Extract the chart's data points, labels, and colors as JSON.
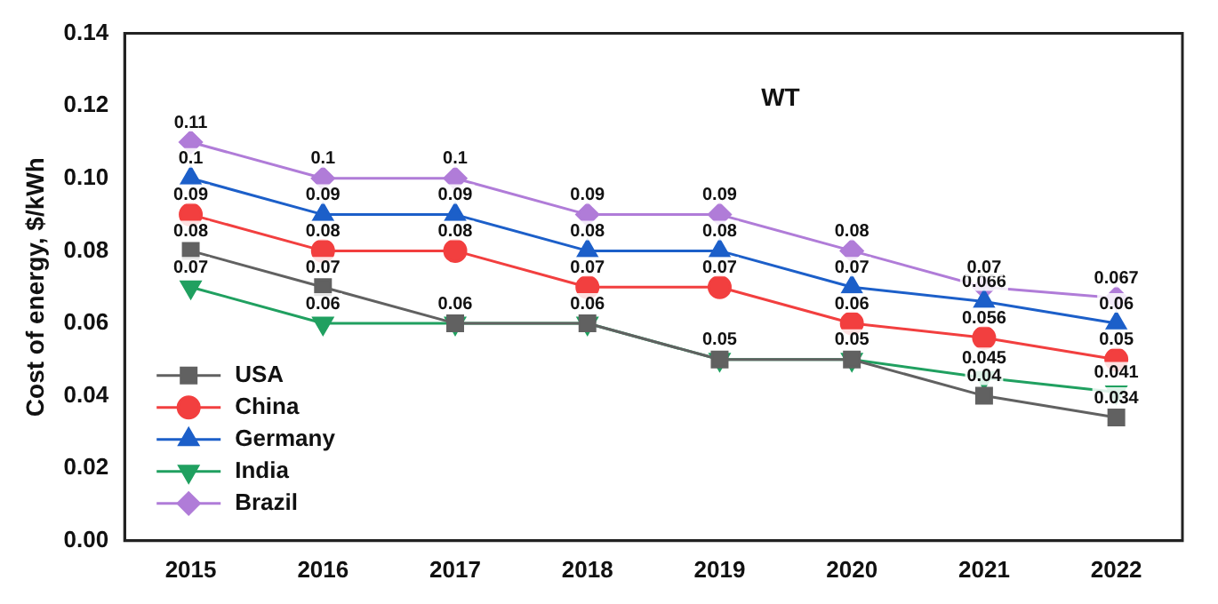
{
  "chart_data": {
    "type": "line",
    "title": "WT",
    "ylabel": "Cost of energy, $/kWh",
    "categories": [
      "2015",
      "2016",
      "2017",
      "2018",
      "2019",
      "2020",
      "2021",
      "2022"
    ],
    "series": [
      {
        "name": "USA",
        "color": "#616161",
        "marker": "square",
        "values": [
          0.08,
          0.07,
          0.06,
          0.06,
          0.05,
          0.05,
          0.04,
          0.034
        ],
        "value_labels": [
          "0.08",
          "0.07",
          null,
          null,
          null,
          null,
          "0.04",
          "0.034"
        ]
      },
      {
        "name": "China",
        "color": "#f23f3f",
        "marker": "circle",
        "values": [
          0.09,
          0.08,
          0.08,
          0.07,
          0.07,
          0.06,
          0.056,
          0.05
        ],
        "value_labels": [
          "0.09",
          "0.08",
          "0.08",
          "0.07",
          "0.07",
          "0.06",
          "0.056",
          "0.05"
        ]
      },
      {
        "name": "Germany",
        "color": "#1c5fc9",
        "marker": "triangle",
        "values": [
          0.1,
          0.09,
          0.09,
          0.08,
          0.08,
          0.07,
          0.066,
          0.06
        ],
        "value_labels": [
          "0.1",
          "0.09",
          "0.09",
          "0.08",
          "0.08",
          "0.07",
          "0.066",
          "0.06"
        ]
      },
      {
        "name": "India",
        "color": "#20a060",
        "marker": "triangle-down",
        "values": [
          0.07,
          0.06,
          0.06,
          0.06,
          0.05,
          0.05,
          0.045,
          0.041
        ],
        "value_labels": [
          "0.07",
          "0.06",
          "0.06",
          "0.06",
          "0.05",
          "0.05",
          "0.045",
          "0.041"
        ]
      },
      {
        "name": "Brazil",
        "color": "#b07cd8",
        "marker": "diamond",
        "values": [
          0.11,
          0.1,
          0.1,
          0.09,
          0.09,
          0.08,
          0.07,
          0.067
        ],
        "value_labels": [
          "0.11",
          "0.1",
          "0.1",
          "0.09",
          "0.09",
          "0.08",
          "0.07",
          "0.067"
        ]
      }
    ],
    "ylim": [
      0,
      0.14
    ],
    "yticks": [
      {
        "value": 0,
        "label": "0.00"
      },
      {
        "value": 0.02,
        "label": "0.02"
      },
      {
        "value": 0.04,
        "label": "0.04"
      },
      {
        "value": 0.06,
        "label": "0.06"
      },
      {
        "value": 0.08,
        "label": "0.08"
      },
      {
        "value": 0.1,
        "label": "0.10"
      },
      {
        "value": 0.12,
        "label": "0.12"
      },
      {
        "value": 0.14,
        "label": "0.14"
      }
    ],
    "grid": false,
    "legend": "bottom left",
    "line_style": "solid"
  }
}
